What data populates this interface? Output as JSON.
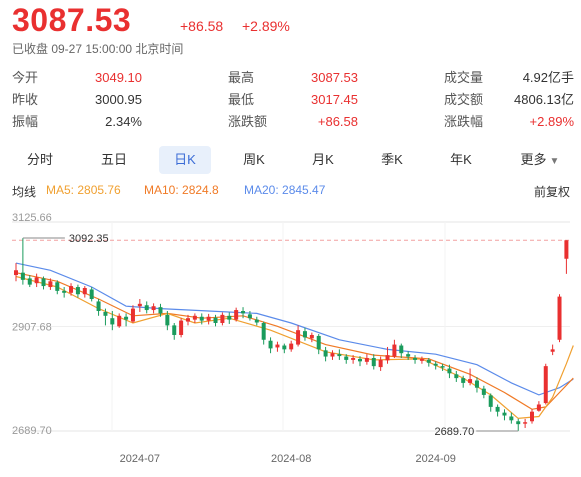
{
  "header": {
    "price": "3087.53",
    "change": "+86.58",
    "change_pct": "+2.89%",
    "status": "已收盘 09-27 15:00:00 北京时间"
  },
  "stats": [
    [
      {
        "label": "今开",
        "value": "3049.10",
        "tone": "red"
      },
      {
        "label": "最高",
        "value": "3087.53",
        "tone": "red"
      },
      {
        "label": "成交量",
        "value": "4.92亿手",
        "tone": "dark"
      }
    ],
    [
      {
        "label": "昨收",
        "value": "3000.95",
        "tone": "dark"
      },
      {
        "label": "最低",
        "value": "3017.45",
        "tone": "red"
      },
      {
        "label": "成交额",
        "value": "4806.13亿",
        "tone": "dark"
      }
    ],
    [
      {
        "label": "振幅",
        "value": "2.34%",
        "tone": "dark"
      },
      {
        "label": "涨跌额",
        "value": "+86.58",
        "tone": "red"
      },
      {
        "label": "涨跌幅",
        "value": "+2.89%",
        "tone": "red"
      }
    ]
  ],
  "tabs": [
    "分时",
    "五日",
    "日K",
    "周K",
    "月K",
    "季K",
    "年K",
    "更多"
  ],
  "active_tab": "日K",
  "indicators": {
    "label": "均线",
    "ma5": "MA5: 2805.76",
    "ma10": "MA10: 2824.8",
    "ma20": "MA20: 2845.47",
    "adjust": "前复权"
  },
  "colors": {
    "up": "#e93030",
    "down": "#1a9b5c",
    "ma5": "#f0a030",
    "ma10": "#f07a26",
    "ma20": "#5b8bea",
    "accent": "#3b6cd6"
  },
  "chart_data": {
    "type": "candlestick",
    "y_ticks": [
      "3125.66",
      "2907.68",
      "2689.70"
    ],
    "ylim": [
      2689.7,
      3125.66
    ],
    "x_ticks": [
      {
        "label": "2024-07",
        "index": 18
      },
      {
        "label": "2024-08",
        "index": 40
      },
      {
        "label": "2024-09",
        "index": 61
      }
    ],
    "max_label": "3092.35",
    "min_label": "2689.70",
    "max_index": 1,
    "min_index": 73,
    "dashed_level": 3087.53,
    "candles": [
      [
        3015,
        3025,
        3002,
        3040
      ],
      [
        3020,
        3005,
        2995,
        3092
      ],
      [
        3008,
        2995,
        2990,
        3015
      ],
      [
        2998,
        3010,
        2990,
        3018
      ],
      [
        3008,
        2992,
        2985,
        3012
      ],
      [
        2990,
        3002,
        2984,
        3008
      ],
      [
        3000,
        2982,
        2975,
        3004
      ],
      [
        2982,
        2978,
        2968,
        2990
      ],
      [
        2978,
        2992,
        2972,
        2998
      ],
      [
        2990,
        2975,
        2968,
        2995
      ],
      [
        2975,
        2988,
        2968,
        2992
      ],
      [
        2985,
        2965,
        2960,
        2990
      ],
      [
        2960,
        2940,
        2930,
        2965
      ],
      [
        2938,
        2930,
        2910,
        2945
      ],
      [
        2925,
        2912,
        2900,
        2940
      ],
      [
        2908,
        2930,
        2905,
        2935
      ],
      [
        2928,
        2922,
        2908,
        2935
      ],
      [
        2918,
        2945,
        2915,
        2952
      ],
      [
        2950,
        2955,
        2938,
        2965
      ],
      [
        2952,
        2942,
        2935,
        2960
      ],
      [
        2942,
        2950,
        2935,
        2956
      ],
      [
        2948,
        2935,
        2928,
        2955
      ],
      [
        2932,
        2910,
        2900,
        2940
      ],
      [
        2910,
        2890,
        2880,
        2915
      ],
      [
        2890,
        2920,
        2885,
        2925
      ],
      [
        2918,
        2925,
        2910,
        2932
      ],
      [
        2922,
        2930,
        2915,
        2935
      ],
      [
        2928,
        2920,
        2912,
        2935
      ],
      [
        2920,
        2928,
        2912,
        2934
      ],
      [
        2926,
        2915,
        2908,
        2932
      ],
      [
        2915,
        2932,
        2910,
        2937
      ],
      [
        2930,
        2922,
        2913,
        2937
      ],
      [
        2922,
        2942,
        2918,
        2947
      ],
      [
        2940,
        2935,
        2925,
        2948
      ],
      [
        2933,
        2925,
        2920,
        2940
      ],
      [
        2922,
        2916,
        2910,
        2928
      ],
      [
        2915,
        2880,
        2870,
        2918
      ],
      [
        2878,
        2862,
        2852,
        2885
      ],
      [
        2864,
        2870,
        2855,
        2876
      ],
      [
        2868,
        2860,
        2852,
        2872
      ],
      [
        2860,
        2872,
        2855,
        2878
      ],
      [
        2870,
        2900,
        2866,
        2910
      ],
      [
        2898,
        2885,
        2878,
        2905
      ],
      [
        2883,
        2890,
        2875,
        2895
      ],
      [
        2888,
        2860,
        2850,
        2892
      ],
      [
        2858,
        2845,
        2835,
        2865
      ],
      [
        2845,
        2852,
        2838,
        2858
      ],
      [
        2850,
        2846,
        2838,
        2860
      ],
      [
        2845,
        2838,
        2830,
        2850
      ],
      [
        2838,
        2842,
        2830,
        2848
      ],
      [
        2840,
        2835,
        2825,
        2846
      ],
      [
        2834,
        2842,
        2828,
        2850
      ],
      [
        2842,
        2825,
        2818,
        2850
      ],
      [
        2823,
        2838,
        2815,
        2845
      ],
      [
        2837,
        2848,
        2830,
        2865
      ],
      [
        2845,
        2870,
        2842,
        2880
      ],
      [
        2868,
        2852,
        2842,
        2872
      ],
      [
        2850,
        2845,
        2838,
        2856
      ],
      [
        2842,
        2838,
        2830,
        2848
      ],
      [
        2836,
        2840,
        2830,
        2845
      ],
      [
        2838,
        2832,
        2824,
        2842
      ],
      [
        2830,
        2826,
        2818,
        2835
      ],
      [
        2825,
        2822,
        2815,
        2830
      ],
      [
        2820,
        2810,
        2800,
        2828
      ],
      [
        2808,
        2800,
        2792,
        2815
      ],
      [
        2800,
        2790,
        2780,
        2805
      ],
      [
        2790,
        2798,
        2785,
        2820
      ],
      [
        2795,
        2780,
        2770,
        2802
      ],
      [
        2778,
        2765,
        2758,
        2784
      ],
      [
        2764,
        2740,
        2730,
        2768
      ],
      [
        2740,
        2730,
        2720,
        2745
      ],
      [
        2728,
        2722,
        2712,
        2735
      ],
      [
        2720,
        2712,
        2705,
        2728
      ],
      [
        2710,
        2704,
        2690,
        2715
      ],
      [
        2705,
        2708,
        2696,
        2715
      ],
      [
        2710,
        2730,
        2705,
        2735
      ],
      [
        2732,
        2745,
        2730,
        2752
      ],
      [
        2748,
        2825,
        2745,
        2830
      ],
      [
        2855,
        2860,
        2848,
        2870
      ],
      [
        2880,
        2970,
        2875,
        2975
      ],
      [
        3049,
        3087.53,
        3017.45,
        3087.53
      ]
    ],
    "ma5_curve": [
      [
        0,
        3012
      ],
      [
        6,
        2990
      ],
      [
        12,
        2945
      ],
      [
        17,
        2915
      ],
      [
        22,
        2935
      ],
      [
        26,
        2915
      ],
      [
        31,
        2925
      ],
      [
        37,
        2900
      ],
      [
        45,
        2855
      ],
      [
        52,
        2838
      ],
      [
        59,
        2840
      ],
      [
        65,
        2800
      ],
      [
        69,
        2765
      ],
      [
        73,
        2716
      ],
      [
        76,
        2720
      ],
      [
        78,
        2760
      ],
      [
        80,
        2830
      ],
      [
        81,
        2868
      ]
    ],
    "ma10_curve": [
      [
        0,
        3020
      ],
      [
        6,
        3002
      ],
      [
        12,
        2965
      ],
      [
        17,
        2930
      ],
      [
        22,
        2935
      ],
      [
        27,
        2925
      ],
      [
        33,
        2930
      ],
      [
        38,
        2908
      ],
      [
        45,
        2870
      ],
      [
        52,
        2848
      ],
      [
        60,
        2840
      ],
      [
        66,
        2808
      ],
      [
        71,
        2770
      ],
      [
        75,
        2735
      ],
      [
        77,
        2740
      ],
      [
        79,
        2770
      ],
      [
        81,
        2800
      ]
    ],
    "ma20_curve": [
      [
        0,
        3040
      ],
      [
        5,
        3025
      ],
      [
        11,
        2990
      ],
      [
        16,
        2950
      ],
      [
        21,
        2945
      ],
      [
        28,
        2940
      ],
      [
        35,
        2935
      ],
      [
        40,
        2915
      ],
      [
        47,
        2880
      ],
      [
        54,
        2860
      ],
      [
        61,
        2850
      ],
      [
        67,
        2828
      ],
      [
        72,
        2790
      ],
      [
        76,
        2765
      ],
      [
        79,
        2780
      ],
      [
        81,
        2798
      ]
    ]
  }
}
